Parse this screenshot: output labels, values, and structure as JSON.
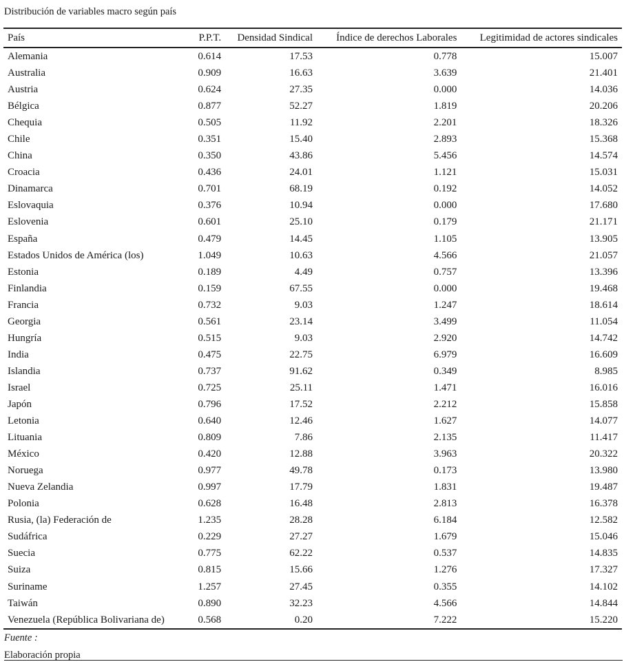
{
  "caption": "Distribución de variables macro según país",
  "columns": [
    "País",
    "P.P.T.",
    "Densidad Sindical",
    "Índice de derechos Laborales",
    "Legitimidad de actores sindicales"
  ],
  "rows": [
    [
      "Alemania",
      "0.614",
      "17.53",
      "0.778",
      "15.007"
    ],
    [
      "Australia",
      "0.909",
      "16.63",
      "3.639",
      "21.401"
    ],
    [
      "Austria",
      "0.624",
      "27.35",
      "0.000",
      "14.036"
    ],
    [
      "Bélgica",
      "0.877",
      "52.27",
      "1.819",
      "20.206"
    ],
    [
      "Chequia",
      "0.505",
      "11.92",
      "2.201",
      "18.326"
    ],
    [
      "Chile",
      "0.351",
      "15.40",
      "2.893",
      "15.368"
    ],
    [
      "China",
      "0.350",
      "43.86",
      "5.456",
      "14.574"
    ],
    [
      "Croacia",
      "0.436",
      "24.01",
      "1.121",
      "15.031"
    ],
    [
      "Dinamarca",
      "0.701",
      "68.19",
      "0.192",
      "14.052"
    ],
    [
      "Eslovaquia",
      "0.376",
      "10.94",
      "0.000",
      "17.680"
    ],
    [
      "Eslovenia",
      "0.601",
      "25.10",
      "0.179",
      "21.171"
    ],
    [
      "España",
      "0.479",
      "14.45",
      "1.105",
      "13.905"
    ],
    [
      "Estados Unidos de América (los)",
      "1.049",
      "10.63",
      "4.566",
      "21.057"
    ],
    [
      "Estonia",
      "0.189",
      "4.49",
      "0.757",
      "13.396"
    ],
    [
      "Finlandia",
      "0.159",
      "67.55",
      "0.000",
      "19.468"
    ],
    [
      "Francia",
      "0.732",
      "9.03",
      "1.247",
      "18.614"
    ],
    [
      "Georgia",
      "0.561",
      "23.14",
      "3.499",
      "11.054"
    ],
    [
      "Hungría",
      "0.515",
      "9.03",
      "2.920",
      "14.742"
    ],
    [
      "India",
      "0.475",
      "22.75",
      "6.979",
      "16.609"
    ],
    [
      "Islandia",
      "0.737",
      "91.62",
      "0.349",
      "8.985"
    ],
    [
      "Israel",
      "0.725",
      "25.11",
      "1.471",
      "16.016"
    ],
    [
      "Japón",
      "0.796",
      "17.52",
      "2.212",
      "15.858"
    ],
    [
      "Letonia",
      "0.640",
      "12.46",
      "1.627",
      "14.077"
    ],
    [
      "Lituania",
      "0.809",
      "7.86",
      "2.135",
      "11.417"
    ],
    [
      "México",
      "0.420",
      "12.88",
      "3.963",
      "20.322"
    ],
    [
      "Noruega",
      "0.977",
      "49.78",
      "0.173",
      "13.980"
    ],
    [
      "Nueva Zelandia",
      "0.997",
      "17.79",
      "1.831",
      "19.487"
    ],
    [
      "Polonia",
      "0.628",
      "16.48",
      "2.813",
      "16.378"
    ],
    [
      "Rusia, (la) Federación de",
      "1.235",
      "28.28",
      "6.184",
      "12.582"
    ],
    [
      "Sudáfrica",
      "0.229",
      "27.27",
      "1.679",
      "15.046"
    ],
    [
      "Suecia",
      "0.775",
      "62.22",
      "0.537",
      "14.835"
    ],
    [
      "Suiza",
      "0.815",
      "15.66",
      "1.276",
      "17.327"
    ],
    [
      "Suriname",
      "1.257",
      "27.45",
      "0.355",
      "14.102"
    ],
    [
      "Taiwán",
      "0.890",
      "32.23",
      "4.566",
      "14.844"
    ],
    [
      "Venezuela (República Bolivariana de)",
      "0.568",
      "0.20",
      "7.222",
      "15.220"
    ]
  ],
  "source_label": "Fuente :",
  "source_text": "Elaboración propia"
}
